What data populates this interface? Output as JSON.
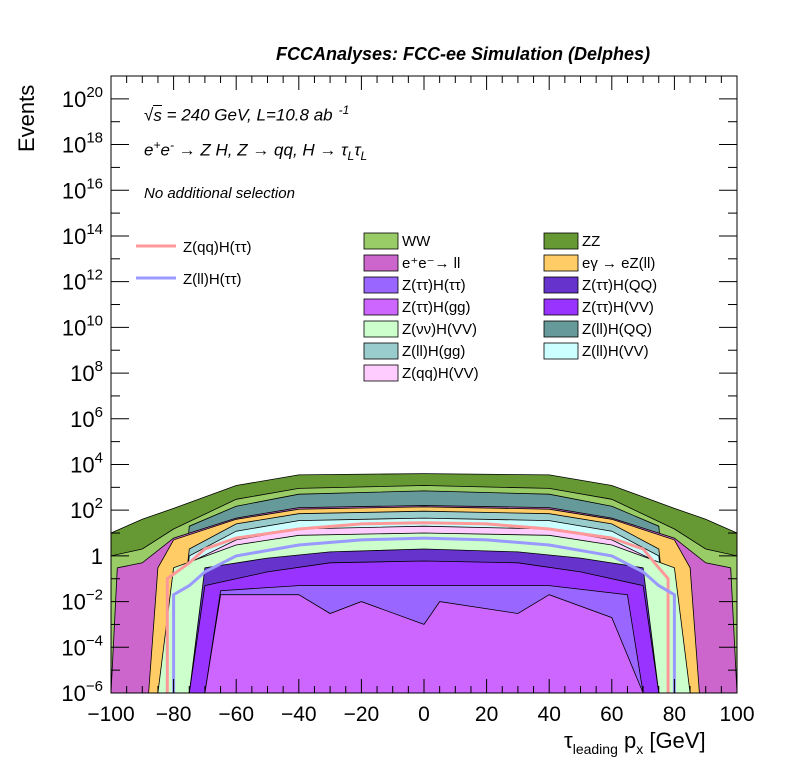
{
  "header": "FCCAnalyses: FCC-ee Simulation (Delphes)",
  "annotations": {
    "energy_prefix": "√",
    "energy_s": "s",
    "energy_rest": " = 240 GeV, L=10.8 ab",
    "lumi_exp": "-1",
    "process_ee": "e",
    "process_plus": "+",
    "process_e2": "e",
    "process_minus": "-",
    "process_rest": " → Z H, Z  → qq, H  → τ",
    "process_sub1": "L",
    "process_tau2": "τ",
    "process_sub2": "L",
    "selection": "No additional selection"
  },
  "axis": {
    "ylabel": "Events",
    "xlabel_main": "τ",
    "xlabel_sub": "leading",
    "xlabel_px": " p",
    "xlabel_x": "x",
    "xlabel_unit": " [GeV]"
  },
  "legend_lines": [
    {
      "label": "Z(qq)H(ττ)",
      "color": "#ff9999"
    },
    {
      "label": "Z(ll)H(ττ)",
      "color": "#9999ff"
    }
  ],
  "legend_fills": [
    {
      "label": "WW",
      "color": "#99cc66"
    },
    {
      "label": "ZZ",
      "color": "#669933"
    },
    {
      "label": "e⁺e⁻→ ll",
      "color": "#cc66cc"
    },
    {
      "label": "eγ → eZ(ll)",
      "color": "#ffcc66"
    },
    {
      "label": "Z(ττ)H(ττ)",
      "color": "#9966ff"
    },
    {
      "label": "Z(ττ)H(QQ)",
      "color": "#6633cc"
    },
    {
      "label": "Z(ττ)H(gg)",
      "color": "#cc66ff"
    },
    {
      "label": "Z(ττ)H(VV)",
      "color": "#9933ff"
    },
    {
      "label": "Z(νν)H(VV)",
      "color": "#ccffcc"
    },
    {
      "label": "Z(ll)H(QQ)",
      "color": "#669999"
    },
    {
      "label": "Z(ll)H(gg)",
      "color": "#99cccc"
    },
    {
      "label": "Z(ll)H(VV)",
      "color": "#ccffff"
    },
    {
      "label": "Z(qq)H(VV)",
      "color": "#ffccff"
    }
  ],
  "chart_data": {
    "type": "stacked-histogram",
    "title": "FCCAnalyses: FCC-ee Simulation (Delphes)",
    "xlabel": "τleading px [GeV]",
    "ylabel": "Events",
    "xlim": [
      -100,
      100
    ],
    "ylim": [
      1e-06,
      1e+21
    ],
    "log_y": true,
    "x_ticks": [
      -100,
      -80,
      -60,
      -40,
      -20,
      0,
      20,
      40,
      60,
      80,
      100
    ],
    "y_ticks": [
      {
        "exp": -6,
        "label": "10"
      },
      {
        "exp": -4,
        "label": "10"
      },
      {
        "exp": -2,
        "label": "10"
      },
      {
        "exp": 0,
        "label": "1"
      },
      {
        "exp": 2,
        "label": "10"
      },
      {
        "exp": 4,
        "label": "10"
      },
      {
        "exp": 6,
        "label": "10"
      },
      {
        "exp": 8,
        "label": "10"
      },
      {
        "exp": 10,
        "label": "10"
      },
      {
        "exp": 12,
        "label": "10"
      },
      {
        "exp": 14,
        "label": "10"
      },
      {
        "exp": 16,
        "label": "10"
      },
      {
        "exp": 18,
        "label": "10"
      },
      {
        "exp": 20,
        "label": "10"
      }
    ],
    "stack_layers_cumulative": [
      {
        "name": "Z(ττ)H(gg)",
        "color": "#cc66ff",
        "points": [
          [
            -100,
            1e-06
          ],
          [
            -70,
            1e-06
          ],
          [
            -65,
            0.02
          ],
          [
            -40,
            0.02
          ],
          [
            -30,
            0.003
          ],
          [
            -20,
            0.01
          ],
          [
            0,
            0.001
          ],
          [
            5,
            0.01
          ],
          [
            30,
            0.003
          ],
          [
            40,
            0.02
          ],
          [
            60,
            0.002
          ],
          [
            70,
            1e-06
          ],
          [
            100,
            1e-06
          ]
        ]
      },
      {
        "name": "Z(ττ)H(ττ)",
        "color": "#9966ff",
        "points": [
          [
            -100,
            1e-06
          ],
          [
            -70,
            1e-06
          ],
          [
            -65,
            0.03
          ],
          [
            -40,
            0.05
          ],
          [
            -20,
            0.05
          ],
          [
            0,
            0.05
          ],
          [
            20,
            0.05
          ],
          [
            40,
            0.05
          ],
          [
            65,
            0.02
          ],
          [
            70,
            1e-06
          ],
          [
            100,
            1e-06
          ]
        ]
      },
      {
        "name": "Z(ττ)H(VV)",
        "color": "#9933ff",
        "points": [
          [
            -100,
            1e-06
          ],
          [
            -75,
            1e-06
          ],
          [
            -70,
            0.05
          ],
          [
            -50,
            0.2
          ],
          [
            -30,
            0.5
          ],
          [
            0,
            0.6
          ],
          [
            30,
            0.5
          ],
          [
            50,
            0.2
          ],
          [
            70,
            0.05
          ],
          [
            75,
            1e-06
          ],
          [
            100,
            1e-06
          ]
        ]
      },
      {
        "name": "Z(ττ)H(QQ)",
        "color": "#6633cc",
        "points": [
          [
            -100,
            1e-06
          ],
          [
            -75,
            1e-06
          ],
          [
            -70,
            0.3
          ],
          [
            -50,
            0.8
          ],
          [
            -30,
            1.5
          ],
          [
            0,
            2
          ],
          [
            30,
            1.5
          ],
          [
            50,
            0.8
          ],
          [
            70,
            0.3
          ],
          [
            75,
            1e-06
          ],
          [
            100,
            1e-06
          ]
        ]
      },
      {
        "name": "Z(νν)H(VV)",
        "color": "#ccffcc",
        "points": [
          [
            -100,
            1e-06
          ],
          [
            -85,
            1e-06
          ],
          [
            -80,
            0.3
          ],
          [
            -60,
            3
          ],
          [
            -40,
            8
          ],
          [
            0,
            10
          ],
          [
            40,
            8
          ],
          [
            60,
            3
          ],
          [
            80,
            0.3
          ],
          [
            85,
            1e-06
          ],
          [
            100,
            1e-06
          ]
        ]
      },
      {
        "name": "Z(qq)H(VV)",
        "color": "#ffccff",
        "points": [
          [
            -100,
            1e-06
          ],
          [
            -80,
            1e-06
          ],
          [
            -75,
            0.5
          ],
          [
            -60,
            5
          ],
          [
            -40,
            15
          ],
          [
            0,
            20
          ],
          [
            40,
            15
          ],
          [
            60,
            5
          ],
          [
            75,
            0.5
          ],
          [
            80,
            1e-06
          ],
          [
            100,
            1e-06
          ]
        ]
      },
      {
        "name": "Z(ll)H(VV)",
        "color": "#ccffff",
        "points": [
          [
            -100,
            1e-06
          ],
          [
            -80,
            1e-06
          ],
          [
            -75,
            1
          ],
          [
            -60,
            12
          ],
          [
            -40,
            35
          ],
          [
            0,
            45
          ],
          [
            40,
            35
          ],
          [
            60,
            12
          ],
          [
            75,
            1
          ],
          [
            80,
            1e-06
          ],
          [
            100,
            1e-06
          ]
        ]
      },
      {
        "name": "Z(ll)H(gg)",
        "color": "#99cccc",
        "points": [
          [
            -100,
            1e-06
          ],
          [
            -80,
            1e-06
          ],
          [
            -75,
            2
          ],
          [
            -60,
            25
          ],
          [
            -40,
            70
          ],
          [
            0,
            90
          ],
          [
            40,
            70
          ],
          [
            60,
            25
          ],
          [
            75,
            2
          ],
          [
            80,
            1e-06
          ],
          [
            100,
            1e-06
          ]
        ]
      },
      {
        "name": "eγ → eZ(ll)",
        "color": "#ffcc66",
        "points": [
          [
            -100,
            1e-06
          ],
          [
            -88,
            1e-06
          ],
          [
            -85,
            0.3
          ],
          [
            -80,
            5
          ],
          [
            -60,
            40
          ],
          [
            -40,
            110
          ],
          [
            0,
            140
          ],
          [
            40,
            110
          ],
          [
            60,
            40
          ],
          [
            80,
            5
          ],
          [
            85,
            0.3
          ],
          [
            88,
            1e-06
          ],
          [
            100,
            1e-06
          ]
        ]
      },
      {
        "name": "e⁺e⁻→ ll",
        "color": "#cc66cc",
        "points": [
          [
            -100,
            1e-06
          ],
          [
            -98,
            0.3
          ],
          [
            -90,
            0.5
          ],
          [
            -80,
            6
          ],
          [
            -60,
            45
          ],
          [
            -40,
            130
          ],
          [
            0,
            160
          ],
          [
            40,
            130
          ],
          [
            60,
            45
          ],
          [
            80,
            6
          ],
          [
            90,
            0.5
          ],
          [
            98,
            0.3
          ],
          [
            100,
            1e-06
          ]
        ]
      },
      {
        "name": "Z(ll)H(QQ)",
        "color": "#669999",
        "points": [
          [
            -100,
            1e-06
          ],
          [
            -80,
            1e-06
          ],
          [
            -75,
            20
          ],
          [
            -60,
            150
          ],
          [
            -40,
            500
          ],
          [
            0,
            700
          ],
          [
            40,
            500
          ],
          [
            60,
            150
          ],
          [
            75,
            20
          ],
          [
            80,
            1e-06
          ],
          [
            100,
            1e-06
          ]
        ]
      },
      {
        "name": "WW",
        "color": "#99cc66",
        "points": [
          [
            -100,
            1
          ],
          [
            -90,
            2
          ],
          [
            -80,
            15
          ],
          [
            -60,
            300
          ],
          [
            -40,
            900
          ],
          [
            0,
            1200
          ],
          [
            40,
            900
          ],
          [
            60,
            300
          ],
          [
            80,
            15
          ],
          [
            90,
            2
          ],
          [
            100,
            1
          ]
        ]
      },
      {
        "name": "ZZ",
        "color": "#669933",
        "points": [
          [
            -100,
            10
          ],
          [
            -90,
            40
          ],
          [
            -80,
            120
          ],
          [
            -60,
            1200
          ],
          [
            -40,
            3500
          ],
          [
            0,
            4000
          ],
          [
            40,
            3500
          ],
          [
            60,
            1200
          ],
          [
            80,
            120
          ],
          [
            90,
            40
          ],
          [
            100,
            10
          ]
        ]
      }
    ],
    "line_series": [
      {
        "name": "Z(qq)H(ττ)",
        "color": "#ff9999",
        "points": [
          [
            -82,
            1e-06
          ],
          [
            -82,
            0.1
          ],
          [
            -75,
            0.5
          ],
          [
            -70,
            2
          ],
          [
            -60,
            6
          ],
          [
            -40,
            15
          ],
          [
            -20,
            25
          ],
          [
            0,
            28
          ],
          [
            20,
            25
          ],
          [
            40,
            15
          ],
          [
            60,
            6
          ],
          [
            70,
            2
          ],
          [
            75,
            0.3
          ],
          [
            78,
            0.1
          ],
          [
            78,
            1e-06
          ]
        ]
      },
      {
        "name": "Z(ll)H(ττ)",
        "color": "#9999ff",
        "points": [
          [
            -80,
            1e-06
          ],
          [
            -80,
            0.02
          ],
          [
            -75,
            0.05
          ],
          [
            -70,
            0.2
          ],
          [
            -60,
            1
          ],
          [
            -40,
            3
          ],
          [
            -20,
            5
          ],
          [
            0,
            6
          ],
          [
            20,
            5
          ],
          [
            40,
            3
          ],
          [
            60,
            1
          ],
          [
            70,
            0.2
          ],
          [
            75,
            0.05
          ],
          [
            80,
            0.02
          ],
          [
            80,
            1e-06
          ]
        ]
      }
    ],
    "legend_position": "top"
  }
}
